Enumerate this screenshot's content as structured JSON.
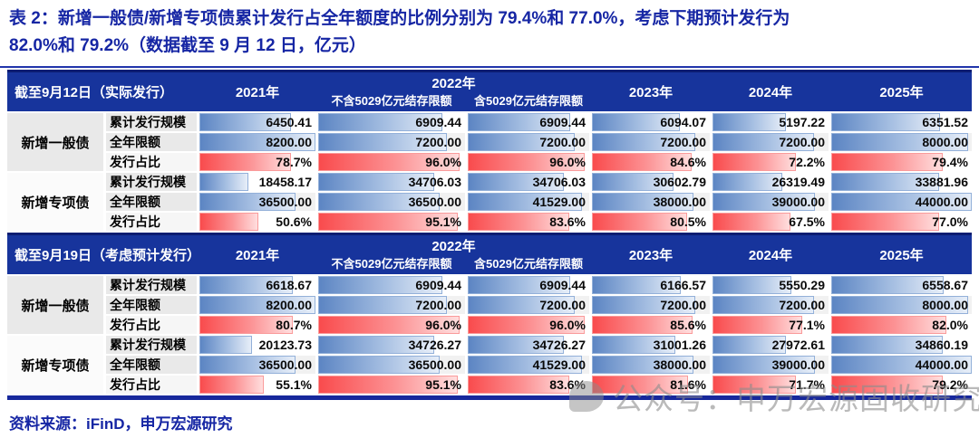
{
  "title_line1": "表 2：新增一般债/新增专项债累计发行占全年额度的比例分别为 79.4%和 77.0%，考虑下期预计发行为",
  "title_line2": "82.0%和 79.2%（数据截至 9 月 12 日，亿元）",
  "source": "资料来源：iFinD，申万宏源研究",
  "watermark": "公众号：申万宏源固收研究",
  "colors": {
    "title_blue": "#1626a4",
    "header_bg": "#17349c",
    "table_border_navy": "#0c1d72",
    "bar_blue_start": "#5c85c3",
    "bar_blue_end": "#e7eef8",
    "bar_red_start": "#f94b4d",
    "bar_red_end": "#ffdede"
  },
  "tables": [
    {
      "corner": "截至9月12日（实际发行）",
      "years": [
        "2021年",
        "2022年",
        "2023年",
        "2024年",
        "2025年"
      ],
      "sub2022": [
        "不含5029亿元结存限额",
        "含5029亿元结存限额"
      ],
      "groups": [
        {
          "name": "新增一般债",
          "barMax": 8200,
          "rows": [
            {
              "label": "累计发行规模",
              "type": "blue",
              "values": [
                "6450.41",
                "6909.44",
                "6909.44",
                "6094.07",
                "5197.22",
                "6351.52"
              ]
            },
            {
              "label": "全年限额",
              "type": "blue",
              "values": [
                "8200.00",
                "7200.00",
                "7200.00",
                "7200.00",
                "7200.00",
                "8000.00"
              ]
            },
            {
              "label": "发行占比",
              "type": "red",
              "values": [
                "78.7%",
                "96.0%",
                "96.0%",
                "84.6%",
                "72.2%",
                "79.4%"
              ]
            }
          ]
        },
        {
          "name": "新增专项债",
          "barMax": 44000,
          "rows": [
            {
              "label": "累计发行规模",
              "type": "blue",
              "values": [
                "18458.17",
                "34706.03",
                "34706.03",
                "30602.79",
                "26319.49",
                "33881.96"
              ]
            },
            {
              "label": "全年限额",
              "type": "blue",
              "values": [
                "36500.00",
                "36500.00",
                "41529.00",
                "38000.00",
                "39000.00",
                "44000.00"
              ]
            },
            {
              "label": "发行占比",
              "type": "red",
              "values": [
                "50.6%",
                "95.1%",
                "83.6%",
                "80.5%",
                "67.5%",
                "77.0%"
              ]
            }
          ]
        }
      ]
    },
    {
      "corner": "截至9月19日（考虑预计发行）",
      "years": [
        "2021年",
        "2022年",
        "2023年",
        "2024年",
        "2025年"
      ],
      "sub2022": [
        "不含5029亿元结存限额",
        "含5029亿元结存限额"
      ],
      "groups": [
        {
          "name": "新增一般债",
          "barMax": 8200,
          "rows": [
            {
              "label": "累计发行规模",
              "type": "blue",
              "values": [
                "6618.67",
                "6909.44",
                "6909.44",
                "6166.57",
                "5550.29",
                "6558.67"
              ]
            },
            {
              "label": "全年限额",
              "type": "blue",
              "values": [
                "8200.00",
                "7200.00",
                "7200.00",
                "7200.00",
                "7200.00",
                "8000.00"
              ]
            },
            {
              "label": "发行占比",
              "type": "red",
              "values": [
                "80.7%",
                "96.0%",
                "96.0%",
                "85.6%",
                "77.1%",
                "82.0%"
              ]
            }
          ]
        },
        {
          "name": "新增专项债",
          "barMax": 44000,
          "rows": [
            {
              "label": "累计发行规模",
              "type": "blue",
              "values": [
                "20123.73",
                "34726.27",
                "34726.27",
                "31001.26",
                "27972.61",
                "34860.19"
              ]
            },
            {
              "label": "全年限额",
              "type": "blue",
              "values": [
                "36500.00",
                "36500.00",
                "41529.00",
                "38000.00",
                "39000.00",
                "44000.00"
              ]
            },
            {
              "label": "发行占比",
              "type": "red",
              "values": [
                "55.1%",
                "95.1%",
                "83.6%",
                "81.6%",
                "71.7%",
                "79.2%"
              ]
            }
          ]
        }
      ]
    }
  ]
}
